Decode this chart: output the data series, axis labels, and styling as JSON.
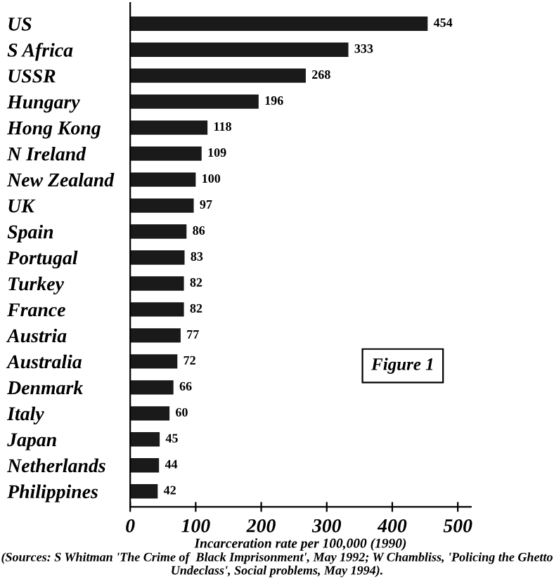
{
  "chart_data": {
    "type": "bar",
    "orientation": "horizontal",
    "categories": [
      "US",
      "S Africa",
      "USSR",
      "Hungary",
      "Hong Kong",
      "N Ireland",
      "New Zealand",
      "UK",
      "Spain",
      "Portugal",
      "Turkey",
      "France",
      "Austria",
      "Australia",
      "Denmark",
      "Italy",
      "Japan",
      "Netherlands",
      "Philippines"
    ],
    "values": [
      454,
      333,
      268,
      196,
      118,
      109,
      100,
      97,
      86,
      83,
      82,
      82,
      77,
      72,
      66,
      60,
      45,
      44,
      42
    ],
    "color": "#1a1a1a",
    "data_labels": true,
    "xlim": [
      0,
      520
    ],
    "xticks": [
      0,
      100,
      200,
      300,
      400,
      500
    ],
    "xlabel": "Incarceration rate per 100,000 (1990)",
    "grid": false,
    "legend": false,
    "annotations": [
      "Figure 1",
      "(Sources: S Whitman 'The Crime of  Black Imprisonment', May 1992; W Chambliss, 'Policing the Ghetto Undeclass', Social problems, May 1994)."
    ]
  }
}
